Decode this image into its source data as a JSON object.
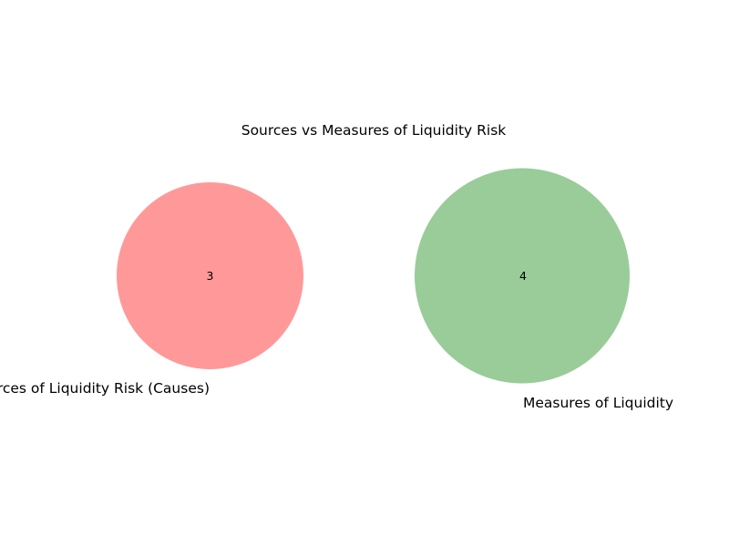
{
  "figure": {
    "title": "Sources vs Measures of Liquidity Risk"
  },
  "chart_data": {
    "type": "venn",
    "title": "Sources vs Measures of Liquidity Risk",
    "sets": [
      {
        "label": "Sources of Liquidity Risk (Causes)",
        "count": "3",
        "color": "#ff9999"
      },
      {
        "label": "Measures of Liquidity",
        "count": "4",
        "color": "#99cc99"
      }
    ],
    "intersection": null
  }
}
